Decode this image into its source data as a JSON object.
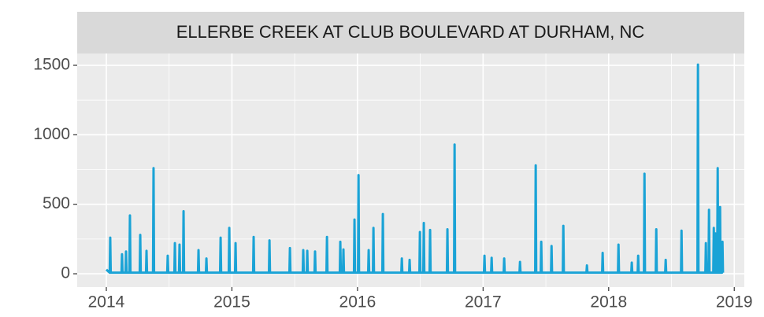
{
  "chart_data": {
    "type": "line",
    "title": "ELLERBE CREEK AT CLUB BOULEVARD AT DURHAM, NC",
    "color": "#1aa3d6",
    "grid": true,
    "xlim": [
      2013.768,
      2019.08
    ],
    "xticks": [
      2014,
      2015,
      2016,
      2017,
      2018,
      2019
    ],
    "ylim": [
      -96,
      1585
    ],
    "yticks": [
      0,
      500,
      1000,
      1500
    ],
    "x": [
      2014.0,
      2014.027,
      2014.031,
      2014.035,
      2014.121,
      2014.125,
      2014.129,
      2014.153,
      2014.157,
      2014.161,
      2014.184,
      2014.188,
      2014.192,
      2014.266,
      2014.27,
      2014.274,
      2014.316,
      2014.32,
      2014.324,
      2014.372,
      2014.376,
      2014.38,
      2014.485,
      2014.489,
      2014.493,
      2014.542,
      2014.546,
      2014.55,
      2014.579,
      2014.583,
      2014.587,
      2014.611,
      2014.615,
      2014.619,
      2014.73,
      2014.734,
      2014.738,
      2014.793,
      2014.797,
      2014.801,
      2014.906,
      2014.91,
      2014.914,
      2014.975,
      2014.979,
      2014.983,
      2015.025,
      2015.029,
      2015.033,
      2015.169,
      2015.173,
      2015.177,
      2015.295,
      2015.299,
      2015.303,
      2015.458,
      2015.462,
      2015.466,
      2015.564,
      2015.568,
      2015.572,
      2015.596,
      2015.6,
      2015.604,
      2015.658,
      2015.662,
      2015.666,
      2015.753,
      2015.757,
      2015.761,
      2015.859,
      2015.863,
      2015.867,
      2015.884,
      2015.888,
      2015.892,
      2015.972,
      2015.976,
      2015.98,
      2016.004,
      2016.008,
      2016.012,
      2016.085,
      2016.089,
      2016.093,
      2016.123,
      2016.127,
      2016.131,
      2016.198,
      2016.202,
      2016.206,
      2016.349,
      2016.353,
      2016.357,
      2016.411,
      2016.415,
      2016.419,
      2016.493,
      2016.497,
      2016.501,
      2016.524,
      2016.528,
      2016.532,
      2016.574,
      2016.578,
      2016.582,
      2016.712,
      2016.716,
      2016.72,
      2016.769,
      2016.773,
      2016.777,
      2017.007,
      2017.011,
      2017.015,
      2017.064,
      2017.068,
      2017.072,
      2017.164,
      2017.168,
      2017.172,
      2017.29,
      2017.294,
      2017.298,
      2017.415,
      2017.419,
      2017.423,
      2017.459,
      2017.463,
      2017.467,
      2017.541,
      2017.545,
      2017.549,
      2017.635,
      2017.639,
      2017.643,
      2017.823,
      2017.827,
      2017.831,
      2017.948,
      2017.952,
      2017.956,
      2018.074,
      2018.078,
      2018.082,
      2018.18,
      2018.184,
      2018.188,
      2018.231,
      2018.235,
      2018.239,
      2018.281,
      2018.285,
      2018.289,
      2018.375,
      2018.379,
      2018.383,
      2018.45,
      2018.454,
      2018.458,
      2018.576,
      2018.58,
      2018.584,
      2018.707,
      2018.711,
      2018.715,
      2018.77,
      2018.774,
      2018.778,
      2018.795,
      2018.799,
      2018.803,
      2018.833,
      2018.837,
      2018.841,
      2018.846,
      2018.85,
      2018.854,
      2018.864,
      2018.868,
      2018.872,
      2018.883,
      2018.887,
      2018.891,
      2018.902,
      2018.906,
      2018.91
    ],
    "values": [
      30,
      8,
      260,
      8,
      8,
      140,
      8,
      8,
      160,
      8,
      8,
      420,
      8,
      8,
      280,
      8,
      8,
      165,
      8,
      8,
      760,
      8,
      8,
      130,
      8,
      8,
      220,
      8,
      8,
      210,
      8,
      8,
      450,
      8,
      8,
      170,
      8,
      8,
      110,
      8,
      8,
      260,
      8,
      8,
      330,
      8,
      8,
      220,
      8,
      8,
      265,
      8,
      8,
      240,
      8,
      8,
      185,
      8,
      8,
      170,
      8,
      8,
      165,
      8,
      8,
      160,
      8,
      8,
      265,
      8,
      8,
      230,
      8,
      8,
      175,
      8,
      8,
      390,
      8,
      8,
      710,
      8,
      8,
      170,
      8,
      8,
      330,
      8,
      8,
      430,
      8,
      8,
      110,
      8,
      8,
      100,
      8,
      8,
      300,
      8,
      8,
      365,
      8,
      8,
      315,
      8,
      8,
      320,
      8,
      8,
      930,
      8,
      8,
      130,
      8,
      8,
      115,
      8,
      8,
      110,
      8,
      8,
      85,
      8,
      8,
      780,
      8,
      8,
      230,
      8,
      8,
      200,
      8,
      8,
      345,
      8,
      8,
      60,
      8,
      8,
      150,
      8,
      8,
      210,
      8,
      8,
      80,
      8,
      8,
      130,
      8,
      8,
      720,
      8,
      8,
      320,
      8,
      8,
      100,
      8,
      8,
      310,
      8,
      8,
      1505,
      8,
      8,
      220,
      8,
      8,
      460,
      8,
      8,
      330,
      8,
      8,
      290,
      8,
      8,
      760,
      8,
      8,
      480,
      8,
      8,
      230,
      8
    ]
  }
}
